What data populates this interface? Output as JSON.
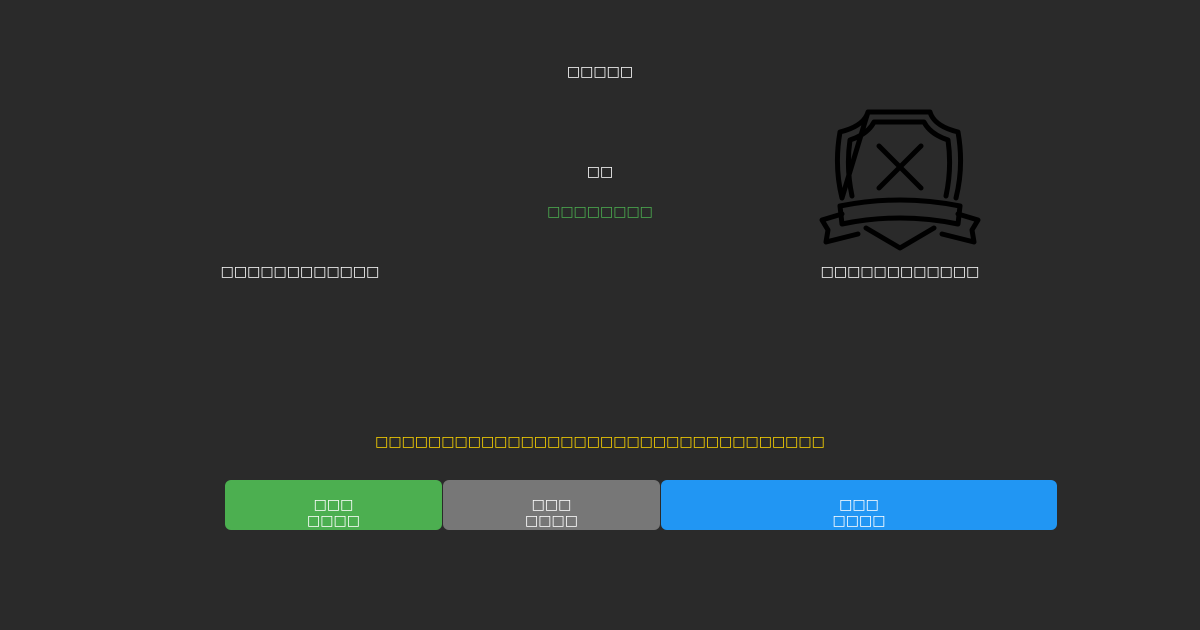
{
  "title": "□□□□□",
  "center_label": "□□",
  "status_text": "□□□□□□□□",
  "left_caption": "□□□□□□□□□□□□",
  "right_caption": "□□□□□□□□□□□□",
  "warning_text": "□□□□□□□□□□□□□□□□□□□□□□□□□□□□□□□□□□",
  "icon": "shield-x-badge-icon",
  "buttons": [
    {
      "line1": "□□□",
      "line2": "□□□□",
      "color": "#4caf50"
    },
    {
      "line1": "□□□",
      "line2": "□□□□",
      "color": "#777777"
    },
    {
      "line1": "□□□",
      "line2": "□□□□",
      "color": "#2196f3"
    }
  ],
  "colors": {
    "background": "#2a2a2a",
    "status": "#4caf50",
    "warning": "#ffd700"
  }
}
